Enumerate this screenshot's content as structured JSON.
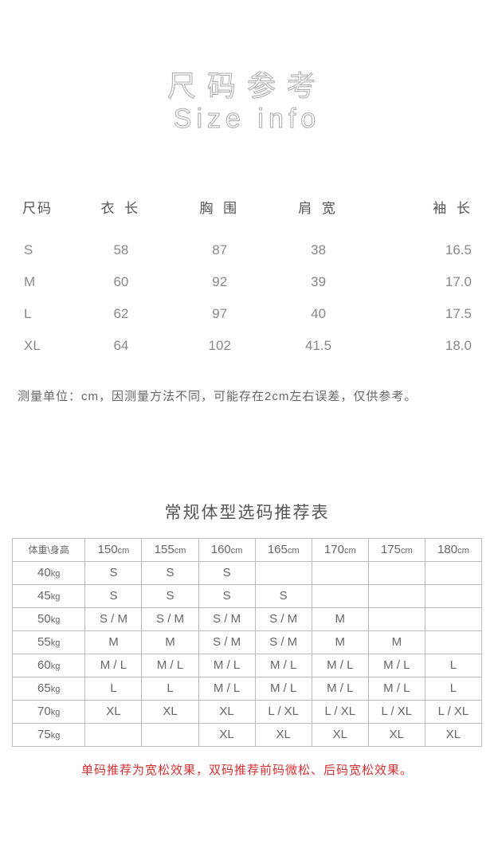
{
  "header": {
    "title_cn": "尺码参考",
    "title_en": "Size info"
  },
  "size_table": {
    "columns": [
      "尺码",
      "衣 长",
      "胸 围",
      "肩 宽",
      "袖 长"
    ],
    "rows": [
      [
        "S",
        "58",
        "87",
        "38",
        "16.5"
      ],
      [
        "M",
        "60",
        "92",
        "39",
        "17.0"
      ],
      [
        "L",
        "62",
        "97",
        "40",
        "17.5"
      ],
      [
        "XL",
        "64",
        "102",
        "41.5",
        "18.0"
      ]
    ]
  },
  "measure_note": "测量单位：cm，因测量方法不同，可能存在2cm左右误差，仅供参考。",
  "rec": {
    "title": "常规体型选码推荐表",
    "corner": "体重\\身高",
    "col_nums": [
      "150",
      "155",
      "160",
      "165",
      "170",
      "175",
      "180"
    ],
    "col_unit": "cm",
    "row_unit": "kg",
    "row_nums": [
      "40",
      "45",
      "50",
      "55",
      "60",
      "65",
      "70",
      "75"
    ],
    "cells": [
      [
        "S",
        "S",
        "S",
        "",
        "",
        "",
        ""
      ],
      [
        "S",
        "S",
        "S",
        "S",
        "",
        "",
        ""
      ],
      [
        "S / M",
        "S / M",
        "S / M",
        "S / M",
        "M",
        "",
        ""
      ],
      [
        "M",
        "M",
        "S / M",
        "S / M",
        "M",
        "M",
        ""
      ],
      [
        "M / L",
        "M / L",
        "M / L",
        "M / L",
        "M / L",
        "M / L",
        "L"
      ],
      [
        "L",
        "L",
        "M / L",
        "M / L",
        "M / L",
        "M / L",
        "L"
      ],
      [
        "XL",
        "XL",
        "XL",
        "L / XL",
        "L / XL",
        "L / XL",
        "L / XL"
      ],
      [
        "",
        "",
        "XL",
        "XL",
        "XL",
        "XL",
        "XL"
      ]
    ],
    "note": "单码推荐为宽松效果，双码推荐前码微松、后码宽松效果。"
  },
  "colors": {
    "text_primary": "#555555",
    "text_secondary": "#888888",
    "border": "#bbbbbb",
    "note_red": "#d93030",
    "background": "#ffffff"
  }
}
